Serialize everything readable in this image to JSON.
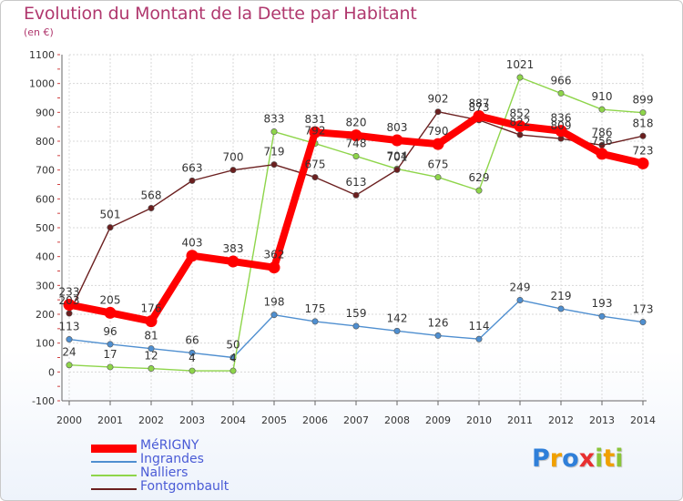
{
  "chart_data": {
    "type": "line",
    "title": "Evolution du Montant de la Dette par Habitant",
    "unit_label": "(en €)",
    "x": [
      "2000",
      "2001",
      "2002",
      "2003",
      "2004",
      "2005",
      "2006",
      "2007",
      "2008",
      "2009",
      "2010",
      "2011",
      "2012",
      "2013",
      "2014"
    ],
    "ylim": [
      -100,
      1100
    ],
    "yticks": [
      -100,
      0,
      100,
      200,
      300,
      400,
      500,
      600,
      700,
      800,
      900,
      1000,
      1100
    ],
    "grid": true,
    "series": [
      {
        "name": "MéRIGNY",
        "color": "#ff0000",
        "values": [
          233,
          205,
          176,
          403,
          383,
          362,
          831,
          820,
          803,
          790,
          887,
          852,
          836,
          756,
          723
        ]
      },
      {
        "name": "Ingrandes",
        "color": "#4f8fd0",
        "values": [
          113,
          96,
          81,
          66,
          50,
          198,
          175,
          159,
          142,
          126,
          114,
          249,
          219,
          193,
          173
        ]
      },
      {
        "name": "Nalliers",
        "color": "#8ed54a",
        "values": [
          24,
          17,
          12,
          4,
          4,
          833,
          792,
          748,
          704,
          675,
          629,
          1021,
          966,
          910,
          899
        ]
      },
      {
        "name": "Fontgombault",
        "color": "#6b1f1f",
        "values": [
          203,
          501,
          568,
          663,
          700,
          719,
          675,
          613,
          701,
          902,
          873,
          822,
          809,
          786,
          818
        ]
      }
    ]
  },
  "logo": {
    "letters": [
      "P",
      "r",
      "o",
      "x",
      "i",
      "t",
      "i"
    ],
    "colors": [
      "#2f7fd9",
      "#f0a000",
      "#2f7fd9",
      "#e83030",
      "#8ac43a",
      "#f0a000",
      "#8ac43a"
    ]
  }
}
